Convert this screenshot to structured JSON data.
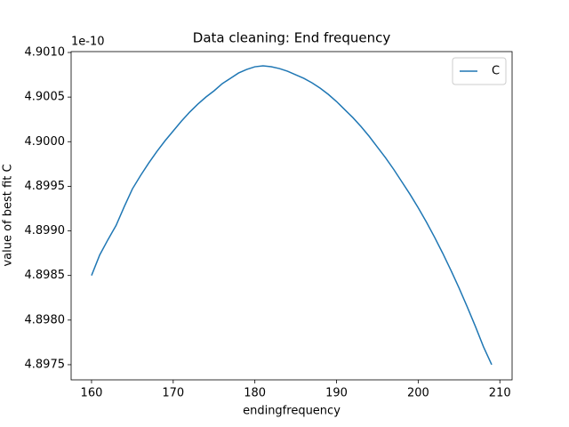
{
  "chart_data": {
    "type": "line",
    "title": "Data cleaning: End frequency",
    "xlabel": "endingfrequency",
    "ylabel": "value of best fit C",
    "y_offset_label": "1e-10",
    "x": [
      160,
      161,
      162,
      163,
      164,
      165,
      166,
      167,
      168,
      169,
      170,
      171,
      172,
      173,
      174,
      175,
      176,
      177,
      178,
      179,
      180,
      181,
      182,
      183,
      184,
      185,
      186,
      187,
      188,
      189,
      190,
      191,
      192,
      193,
      194,
      195,
      196,
      197,
      198,
      199,
      200,
      201,
      202,
      203,
      204,
      205,
      206,
      207,
      208,
      209
    ],
    "series": [
      {
        "name": "C",
        "color": "#1f77b4",
        "values": [
          4.8985,
          4.89873,
          4.8989,
          4.89906,
          4.89927,
          4.89947,
          4.89962,
          4.89976,
          4.89989,
          4.90001,
          4.90012,
          4.90023,
          4.90033,
          4.90042,
          4.9005,
          4.90057,
          4.90065,
          4.90071,
          4.90077,
          4.90081,
          4.90084,
          4.90085,
          4.90084,
          4.90082,
          4.90079,
          4.90075,
          4.90071,
          4.90066,
          4.9006,
          4.90053,
          4.90045,
          4.90036,
          4.90027,
          4.90017,
          4.90006,
          4.89994,
          4.89982,
          4.89969,
          4.89955,
          4.89941,
          4.89926,
          4.8991,
          4.89893,
          4.89875,
          4.89856,
          4.89836,
          4.89815,
          4.89793,
          4.8977,
          4.8975
        ]
      }
    ],
    "xlim": [
      157.5,
      211.5
    ],
    "xticks": [
      160,
      170,
      180,
      190,
      200,
      210
    ],
    "ylim": [
      4.89733,
      4.90101
    ],
    "yticks": [
      {
        "value": 4.8975,
        "label": "4.8975"
      },
      {
        "value": 4.898,
        "label": "4.8980"
      },
      {
        "value": 4.8985,
        "label": "4.8985"
      },
      {
        "value": 4.899,
        "label": "4.8990"
      },
      {
        "value": 4.8995,
        "label": "4.8995"
      },
      {
        "value": 4.9,
        "label": "4.9000"
      },
      {
        "value": 4.9005,
        "label": "4.9005"
      },
      {
        "value": 4.901,
        "label": "4.9010"
      }
    ],
    "legend": "upper right",
    "grid": false
  }
}
